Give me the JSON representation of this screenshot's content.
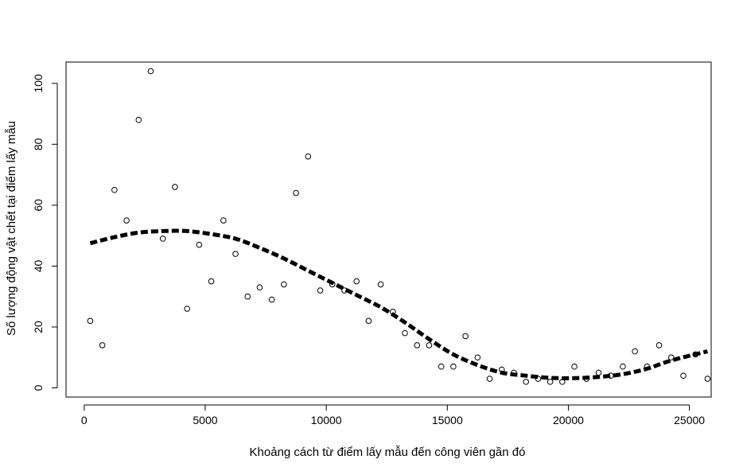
{
  "chart_data": {
    "type": "scatter",
    "title": "",
    "xlabel": "Khoảng cách từ điểm lấy mẫu đến công viên gần đó",
    "ylabel": "Số lượng động vật chết tại điểm lấy mẫu",
    "xlim": [
      -750,
      25900
    ],
    "ylim": [
      -3,
      107
    ],
    "xticks": [
      0,
      5000,
      10000,
      15000,
      20000,
      25000
    ],
    "xtick_labels": [
      "0",
      "5000",
      "10000",
      "15000",
      "20000",
      "25000"
    ],
    "yticks": [
      0,
      20,
      40,
      60,
      80,
      100
    ],
    "ytick_labels": [
      "0",
      "20",
      "40",
      "60",
      "80",
      "100"
    ],
    "grid": false,
    "series": [
      {
        "kind": "points",
        "marker": "open-circle",
        "color": "#000000",
        "points": [
          [
            250,
            22
          ],
          [
            750,
            14
          ],
          [
            1250,
            65
          ],
          [
            1750,
            55
          ],
          [
            2250,
            88
          ],
          [
            2750,
            104
          ],
          [
            3250,
            49
          ],
          [
            3750,
            66
          ],
          [
            4250,
            26
          ],
          [
            4750,
            47
          ],
          [
            5250,
            35
          ],
          [
            5750,
            55
          ],
          [
            6250,
            44
          ],
          [
            6750,
            30
          ],
          [
            7250,
            33
          ],
          [
            7750,
            29
          ],
          [
            8250,
            34
          ],
          [
            8750,
            64
          ],
          [
            9250,
            76
          ],
          [
            9750,
            32
          ],
          [
            10250,
            34
          ],
          [
            10750,
            32
          ],
          [
            11250,
            35
          ],
          [
            11750,
            22
          ],
          [
            12250,
            34
          ],
          [
            12750,
            25
          ],
          [
            13250,
            18
          ],
          [
            13750,
            14
          ],
          [
            14250,
            14
          ],
          [
            14750,
            7
          ],
          [
            15250,
            7
          ],
          [
            15750,
            17
          ],
          [
            16250,
            10
          ],
          [
            16750,
            3
          ],
          [
            17250,
            6
          ],
          [
            17750,
            5
          ],
          [
            18250,
            2
          ],
          [
            18750,
            3
          ],
          [
            19250,
            2
          ],
          [
            19750,
            2
          ],
          [
            20250,
            7
          ],
          [
            20750,
            3
          ],
          [
            21250,
            5
          ],
          [
            21750,
            4
          ],
          [
            22250,
            7
          ],
          [
            22750,
            12
          ],
          [
            23250,
            7
          ],
          [
            23750,
            14
          ],
          [
            24250,
            10
          ],
          [
            24750,
            4
          ],
          [
            25250,
            11
          ],
          [
            25750,
            3
          ]
        ]
      },
      {
        "kind": "fitted-line",
        "line_style": "dashed",
        "color": "#000000",
        "points": [
          [
            250,
            47.5
          ],
          [
            1250,
            49.5
          ],
          [
            2250,
            51
          ],
          [
            3250,
            51.5
          ],
          [
            4250,
            51.5
          ],
          [
            5250,
            50.5
          ],
          [
            6250,
            49
          ],
          [
            7250,
            46
          ],
          [
            8250,
            42.5
          ],
          [
            9250,
            38.5
          ],
          [
            10250,
            34.5
          ],
          [
            11250,
            30.5
          ],
          [
            12250,
            26.5
          ],
          [
            13250,
            21.5
          ],
          [
            14250,
            16
          ],
          [
            15250,
            11
          ],
          [
            16250,
            7.5
          ],
          [
            17250,
            5
          ],
          [
            18250,
            4
          ],
          [
            19250,
            3.3
          ],
          [
            20250,
            3.2
          ],
          [
            21250,
            3.6
          ],
          [
            22250,
            4.5
          ],
          [
            23250,
            6.3
          ],
          [
            24250,
            9
          ],
          [
            25750,
            12
          ]
        ]
      }
    ]
  }
}
